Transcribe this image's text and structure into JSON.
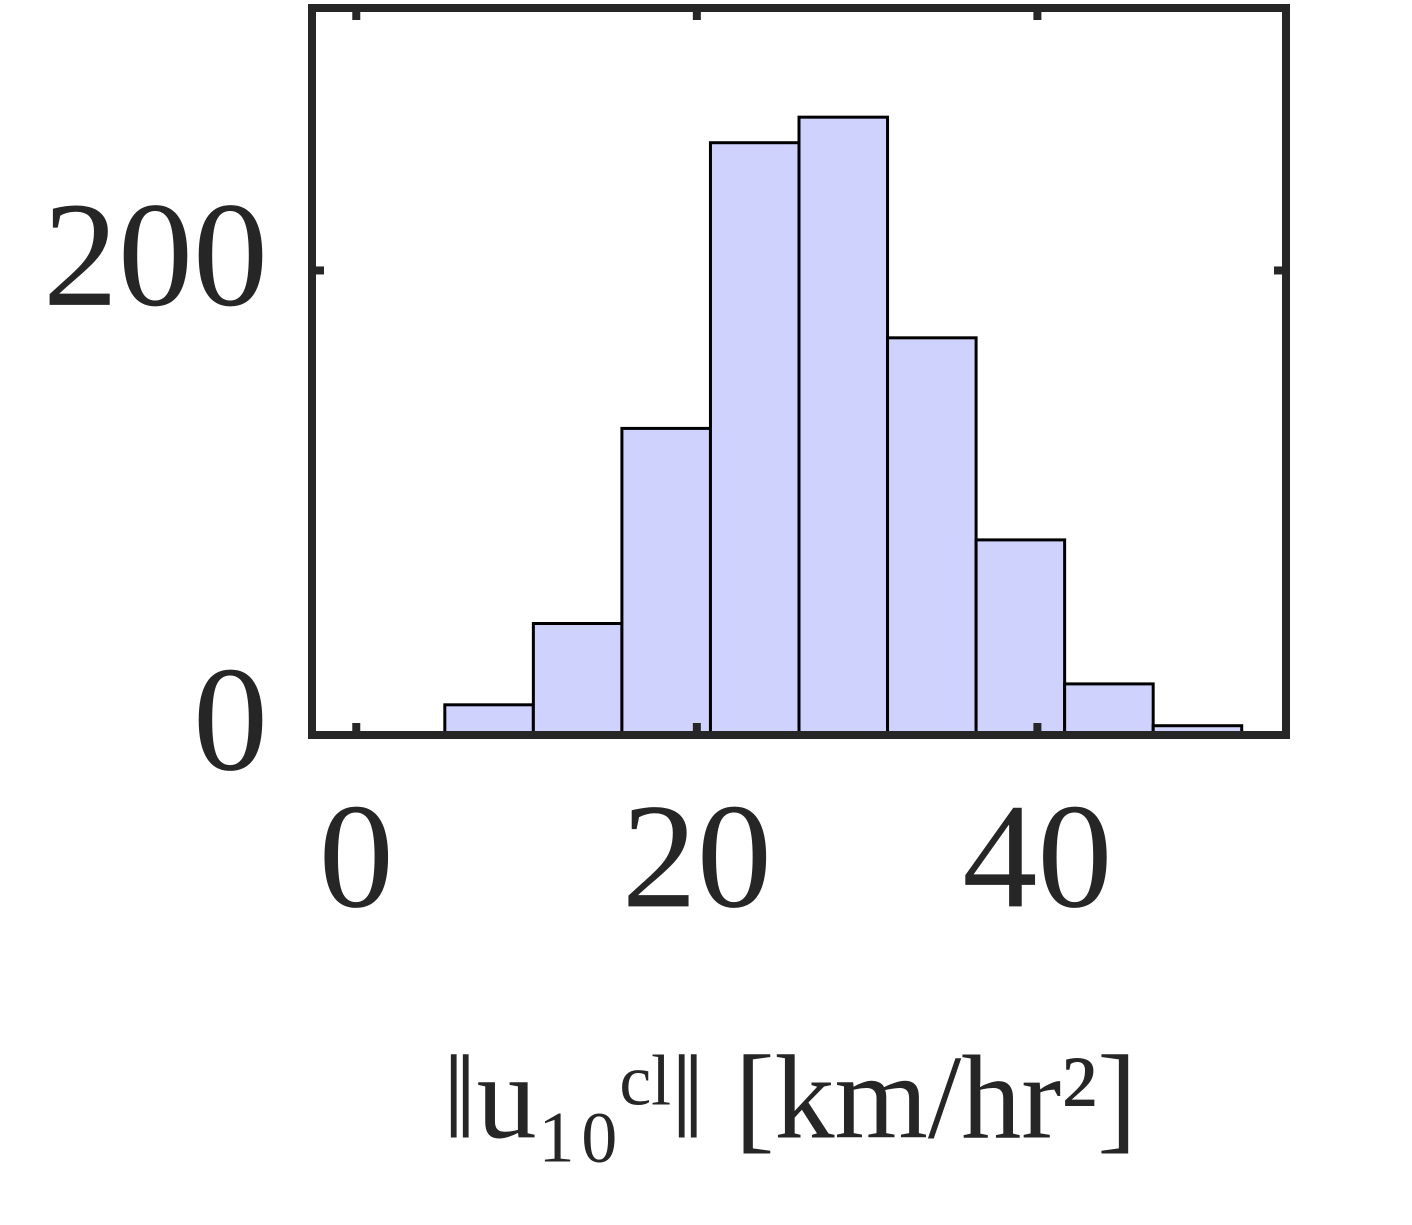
{
  "chart_data": {
    "type": "histogram",
    "x_label": "‖u₁₀ᶜˡ‖ [km/hr²]",
    "bins": [
      5.2,
      10.4,
      15.6,
      20.8,
      26.0,
      31.2,
      36.4,
      41.6,
      46.8,
      52.0
    ],
    "values": [
      13,
      48,
      132,
      255,
      266,
      171,
      84,
      22,
      4
    ],
    "color": "#d0d2fe",
    "edge_color": "#000000",
    "xlim": [
      -2.6,
      54.6
    ],
    "xticks": [
      0,
      20,
      40
    ],
    "ylim": [
      0,
      313
    ],
    "yticks": [
      0,
      200
    ],
    "grid": false
  }
}
